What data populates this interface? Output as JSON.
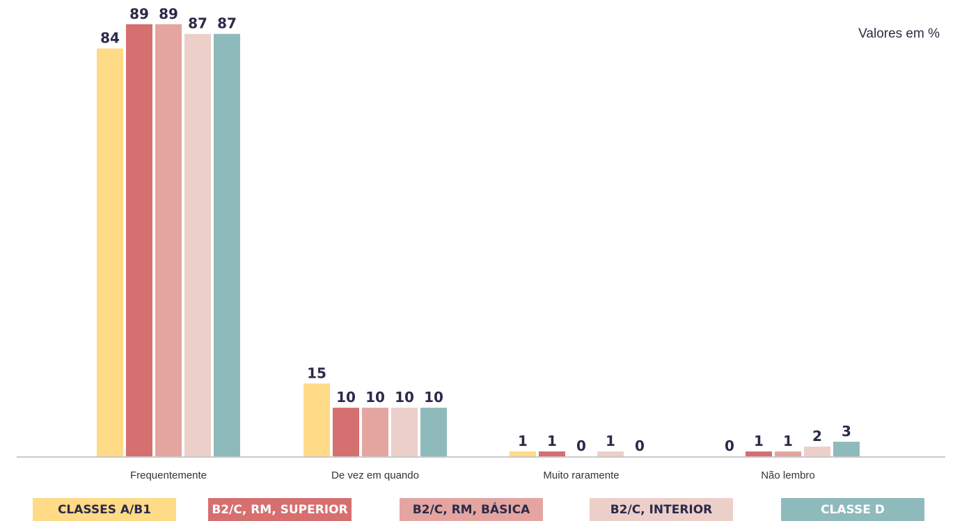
{
  "chart_data": {
    "type": "bar",
    "unit_note": "Valores em %",
    "categories": [
      "Frequentemente",
      "De vez em quando",
      "Muito raramente",
      "Não lembro"
    ],
    "series": [
      {
        "name": "CLASSES A/B1",
        "color": "#ffdb87",
        "values": [
          84,
          15,
          1,
          0
        ]
      },
      {
        "name": "B2/C, RM, SUPERIOR",
        "color": "#d66f6f",
        "values": [
          89,
          10,
          1,
          1
        ]
      },
      {
        "name": "B2/C, RM, BÁSICA",
        "color": "#e4a5a1",
        "values": [
          89,
          10,
          0,
          1
        ]
      },
      {
        "name": "B2/C, INTERIOR",
        "color": "#edcfca",
        "values": [
          87,
          10,
          1,
          2
        ]
      },
      {
        "name": "CLASSE D",
        "color": "#8fbabb",
        "values": [
          87,
          10,
          0,
          3
        ]
      }
    ],
    "ylim": [
      0,
      100
    ],
    "grid": false,
    "legend_position": "bottom"
  }
}
